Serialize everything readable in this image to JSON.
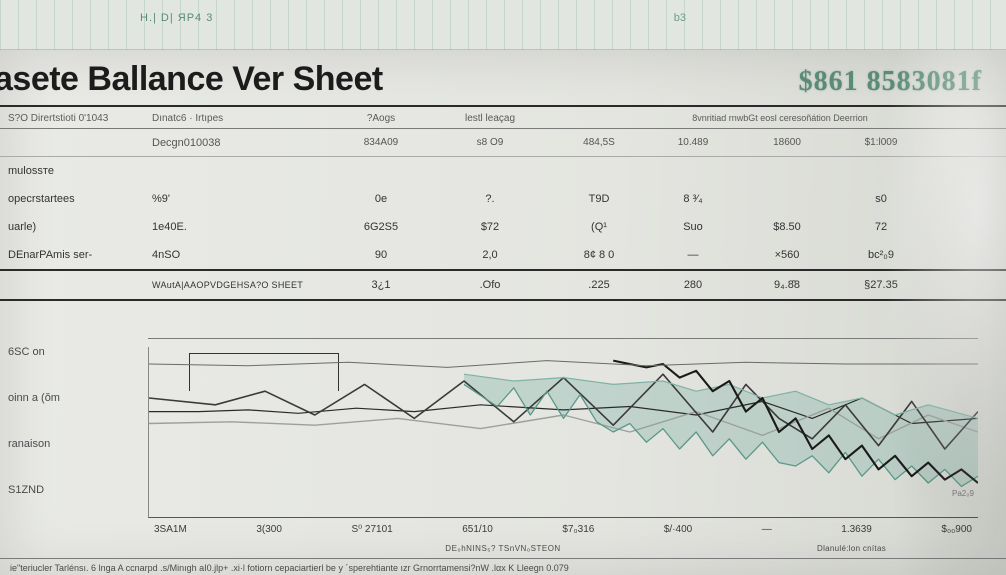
{
  "top_strip": {
    "left_ticks": "H.|  D| ЯP4  3",
    "right_tick": "b3"
  },
  "title": "asete Ballance Ver  Sheet",
  "headline_amount": "$861 8583081f",
  "subhead": {
    "left1": "S?O  Dirertstioti  0'1043",
    "left2": "Dınatc6 · Irtıpes",
    "c1": "?Aogs",
    "c2": "lestl leaçag",
    "wide": "8vnritiad   rnwbGt eosl ceresoñátion  Deerrion"
  },
  "hdr2": {
    "lbl": "",
    "lblsub": "Decgn010038",
    "c1": "834A09",
    "c2": "s8 O9",
    "d": [
      "484,5S",
      "10.489",
      "18600",
      "$1:l009"
    ]
  },
  "rows": [
    {
      "lbl": "mulossтe",
      "lblsub": "",
      "c1": "",
      "c2": "",
      "d": [
        "",
        "",
        "",
        ""
      ]
    },
    {
      "lbl": "opecrstartees",
      "lblsub": "%9'",
      "c1": "0e",
      "c2": "?.",
      "d": [
        "T9D",
        "8 ³⁄₄",
        "",
        "s0"
      ]
    },
    {
      "lbl": "uarle)",
      "lblsub": "1e40E.",
      "c1": "6G2S5",
      "c2": "$72",
      "d": [
        "(Q¹",
        "Suо",
        "$8.50",
        "72"
      ]
    },
    {
      "lbl": "DEnarPAmis ser-",
      "lblsub": "4nSO",
      "c1": "90",
      "c2": "2,0",
      "d": [
        "8¢ 8 0",
        "—",
        "×560",
        "bc²₀9"
      ]
    }
  ],
  "summary": {
    "lbl": "",
    "lblsub": "WAutA|AAOPVDGEHSA?O  SHEET",
    "c1": "3¿1",
    "c2": ".Ofо",
    "d": [
      ".225",
      "280",
      "9₄.8̄8",
      "§27.35"
    ]
  },
  "side_labels": [
    "6SС on",
    "oinn a (ŏm",
    "ranaison",
    "S1ZND"
  ],
  "chart": {
    "type": "line",
    "background": "#e4e5e0",
    "axis_color": "#555555",
    "x_ticks": [
      "3SA1M",
      "3(300",
      "S⁰ 27101",
      "651/10",
      "$7₀316",
      "$/·400",
      "—",
      "1.3639",
      "$₀₀900"
    ],
    "series": [
      {
        "name": "flat-dark",
        "color": "#2a2a2a",
        "width": 1.2,
        "points": [
          [
            0,
            62
          ],
          [
            6,
            62
          ],
          [
            12,
            63
          ],
          [
            18,
            61
          ],
          [
            25,
            64
          ],
          [
            32,
            62
          ],
          [
            40,
            66
          ],
          [
            50,
            63
          ],
          [
            58,
            65
          ],
          [
            66,
            60
          ],
          [
            74,
            68
          ],
          [
            80,
            58
          ],
          [
            86,
            70
          ],
          [
            92,
            55
          ],
          [
            100,
            58
          ]
        ]
      },
      {
        "name": "light-grey",
        "color": "#9aa19b",
        "width": 1.4,
        "points": [
          [
            0,
            55
          ],
          [
            10,
            56
          ],
          [
            20,
            54
          ],
          [
            30,
            58
          ],
          [
            40,
            52
          ],
          [
            50,
            60
          ],
          [
            58,
            50
          ],
          [
            66,
            62
          ],
          [
            74,
            48
          ],
          [
            82,
            64
          ],
          [
            88,
            46
          ],
          [
            94,
            60
          ],
          [
            100,
            50
          ]
        ]
      },
      {
        "name": "mid-wavy",
        "color": "#3a3a3a",
        "width": 1.6,
        "points": [
          [
            0,
            70
          ],
          [
            8,
            66
          ],
          [
            14,
            74
          ],
          [
            20,
            60
          ],
          [
            26,
            78
          ],
          [
            32,
            58
          ],
          [
            38,
            80
          ],
          [
            44,
            56
          ],
          [
            50,
            82
          ],
          [
            56,
            54
          ],
          [
            62,
            84
          ],
          [
            68,
            50
          ],
          [
            72,
            78
          ],
          [
            76,
            58
          ],
          [
            80,
            46
          ],
          [
            84,
            66
          ],
          [
            88,
            42
          ],
          [
            92,
            68
          ],
          [
            96,
            40
          ],
          [
            100,
            62
          ]
        ]
      },
      {
        "name": "teal-area-top",
        "color": "#5a9889",
        "width": 1.3,
        "points": [
          [
            38,
            78
          ],
          [
            42,
            65
          ],
          [
            44,
            76
          ],
          [
            46,
            60
          ],
          [
            48,
            74
          ],
          [
            50,
            58
          ],
          [
            52,
            72
          ],
          [
            54,
            56
          ],
          [
            56,
            50
          ],
          [
            58,
            55
          ],
          [
            60,
            44
          ],
          [
            62,
            52
          ],
          [
            64,
            40
          ],
          [
            66,
            50
          ],
          [
            68,
            36
          ],
          [
            70,
            46
          ],
          [
            72,
            34
          ],
          [
            74,
            44
          ],
          [
            76,
            32
          ],
          [
            78,
            30
          ],
          [
            80,
            36
          ],
          [
            82,
            26
          ],
          [
            84,
            38
          ],
          [
            86,
            24
          ],
          [
            88,
            34
          ],
          [
            90,
            22
          ],
          [
            92,
            30
          ],
          [
            94,
            20
          ],
          [
            96,
            28
          ],
          [
            98,
            18
          ],
          [
            100,
            24
          ]
        ]
      },
      {
        "name": "teal-area-bottom",
        "color": "#7fb3a5",
        "width": 1.2,
        "points": [
          [
            38,
            84
          ],
          [
            44,
            80
          ],
          [
            50,
            82
          ],
          [
            56,
            78
          ],
          [
            62,
            80
          ],
          [
            66,
            74
          ],
          [
            70,
            78
          ],
          [
            74,
            70
          ],
          [
            78,
            74
          ],
          [
            82,
            66
          ],
          [
            86,
            70
          ],
          [
            90,
            60
          ],
          [
            94,
            66
          ],
          [
            100,
            58
          ]
        ]
      },
      {
        "name": "rising-dark",
        "color": "#1a1a1a",
        "width": 2.1,
        "points": [
          [
            56,
            92
          ],
          [
            60,
            88
          ],
          [
            62,
            90
          ],
          [
            64,
            82
          ],
          [
            66,
            86
          ],
          [
            68,
            74
          ],
          [
            70,
            80
          ],
          [
            72,
            62
          ],
          [
            74,
            70
          ],
          [
            76,
            50
          ],
          [
            78,
            58
          ],
          [
            80,
            40
          ],
          [
            82,
            48
          ],
          [
            84,
            34
          ],
          [
            86,
            42
          ],
          [
            88,
            28
          ],
          [
            90,
            36
          ],
          [
            92,
            24
          ],
          [
            94,
            32
          ],
          [
            96,
            22
          ],
          [
            98,
            28
          ],
          [
            100,
            20
          ]
        ]
      },
      {
        "name": "baseline-low",
        "color": "#6a6a6a",
        "width": 1.0,
        "points": [
          [
            0,
            90
          ],
          [
            12,
            89
          ],
          [
            24,
            91
          ],
          [
            36,
            88
          ],
          [
            48,
            92
          ],
          [
            60,
            89
          ],
          [
            72,
            91
          ],
          [
            84,
            90
          ],
          [
            100,
            90
          ]
        ]
      }
    ],
    "note": "Pa2₀9"
  },
  "footer": {
    "mid_caption": "DE₀hNINS₅?  TSnVN₀STEON",
    "right_caption": "Dlanulé:lon  cnítаs",
    "line": "ie\"teriucler  Tarlénsı.   6  lnga  A ccnarpd .s/Minıgh aI0.jlp+ .xi·l fotiorn  cepaciartierl  be y ´sperehtiante  ızr Grnorrtamensi?nW .lαx     K   Lleegn  0.079"
  }
}
